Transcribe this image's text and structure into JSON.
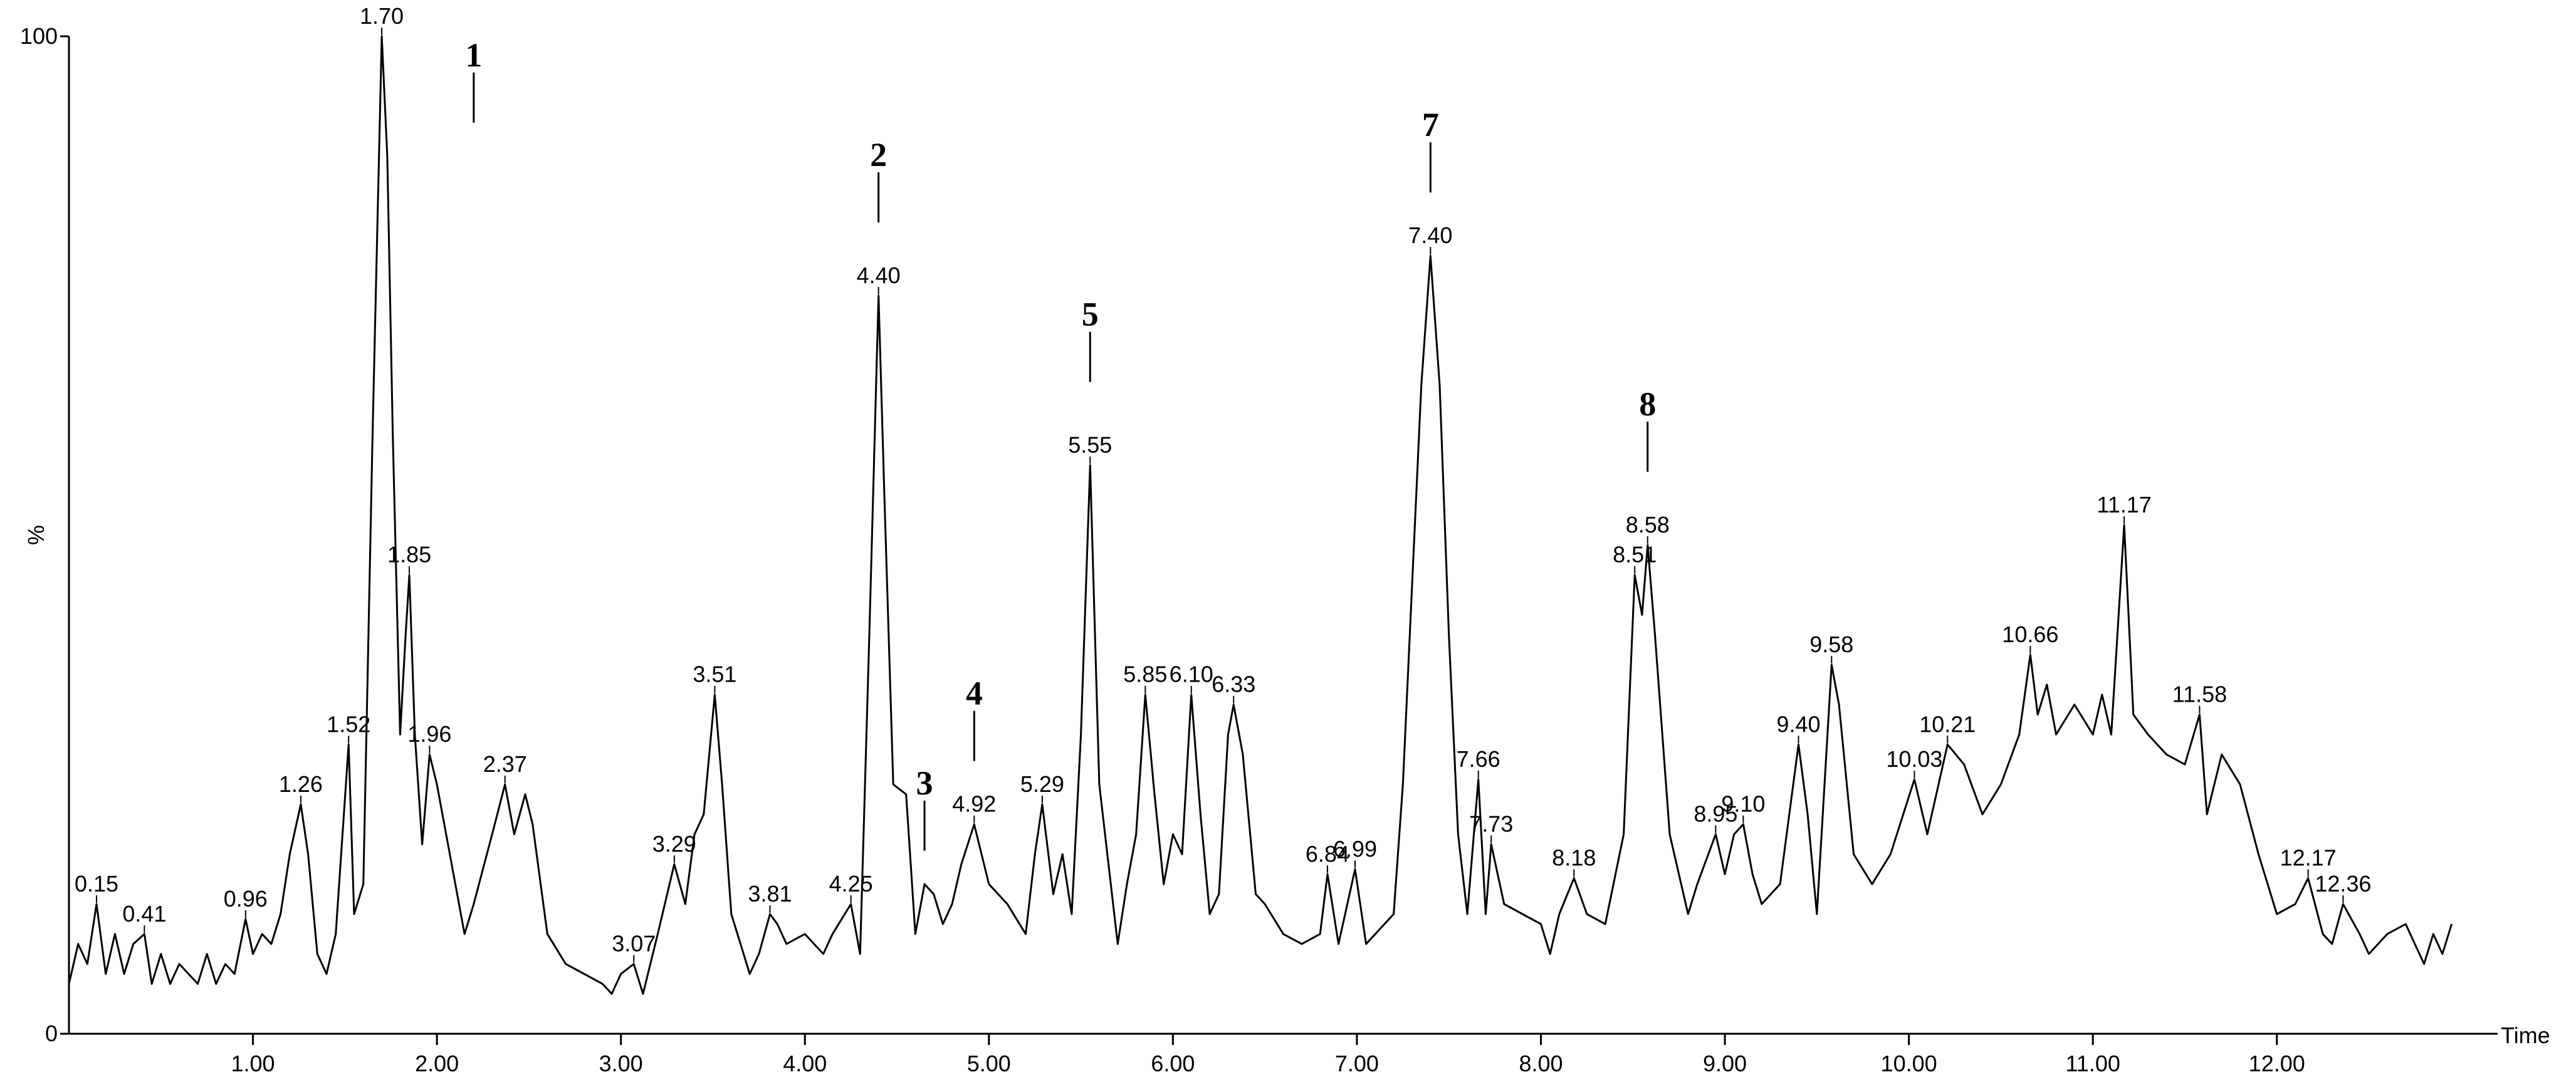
{
  "chart_data": {
    "type": "line",
    "color": "#000000",
    "xlabel": "Time",
    "ylabel": "%",
    "xlim": [
      0,
      13.2
    ],
    "ylim": [
      0,
      100
    ],
    "yticks": [
      0,
      100
    ],
    "xticks": [
      {
        "value": 1,
        "label": "1.00"
      },
      {
        "value": 2,
        "label": "2.00"
      },
      {
        "value": 3,
        "label": "3.00"
      },
      {
        "value": 4,
        "label": "4.00"
      },
      {
        "value": 5,
        "label": "5.00"
      },
      {
        "value": 6,
        "label": "6.00"
      },
      {
        "value": 7,
        "label": "7.00"
      },
      {
        "value": 8,
        "label": "8.00"
      },
      {
        "value": 9,
        "label": "9.00"
      },
      {
        "value": 10,
        "label": "10.00"
      },
      {
        "value": 11,
        "label": "11.00"
      },
      {
        "value": 12,
        "label": "12.00"
      }
    ],
    "x": [
      0.0,
      0.05,
      0.1,
      0.15,
      0.2,
      0.25,
      0.3,
      0.35,
      0.41,
      0.45,
      0.5,
      0.55,
      0.6,
      0.7,
      0.75,
      0.8,
      0.85,
      0.9,
      0.96,
      1.0,
      1.05,
      1.1,
      1.15,
      1.2,
      1.26,
      1.3,
      1.35,
      1.4,
      1.45,
      1.52,
      1.55,
      1.6,
      1.65,
      1.7,
      1.73,
      1.76,
      1.8,
      1.83,
      1.85,
      1.88,
      1.92,
      1.96,
      2.0,
      2.05,
      2.1,
      2.15,
      2.2,
      2.3,
      2.37,
      2.42,
      2.48,
      2.52,
      2.6,
      2.7,
      2.8,
      2.9,
      2.95,
      3.0,
      3.07,
      3.12,
      3.2,
      3.29,
      3.35,
      3.4,
      3.45,
      3.51,
      3.55,
      3.6,
      3.65,
      3.7,
      3.75,
      3.81,
      3.85,
      3.9,
      4.0,
      4.1,
      4.15,
      4.25,
      4.3,
      4.35,
      4.4,
      4.43,
      4.48,
      4.55,
      4.6,
      4.65,
      4.7,
      4.75,
      4.8,
      4.85,
      4.92,
      5.0,
      5.1,
      5.2,
      5.25,
      5.29,
      5.35,
      5.4,
      5.45,
      5.5,
      5.55,
      5.6,
      5.65,
      5.7,
      5.75,
      5.8,
      5.85,
      5.9,
      5.95,
      6.0,
      6.05,
      6.1,
      6.15,
      6.2,
      6.25,
      6.3,
      6.33,
      6.38,
      6.45,
      6.5,
      6.6,
      6.7,
      6.8,
      6.84,
      6.9,
      6.99,
      7.05,
      7.1,
      7.2,
      7.25,
      7.3,
      7.35,
      7.4,
      7.45,
      7.5,
      7.55,
      7.6,
      7.66,
      7.7,
      7.73,
      7.8,
      7.9,
      8.0,
      8.05,
      8.1,
      8.18,
      8.25,
      8.35,
      8.45,
      8.51,
      8.55,
      8.58,
      8.62,
      8.7,
      8.8,
      8.85,
      8.95,
      9.0,
      9.05,
      9.1,
      9.15,
      9.2,
      9.3,
      9.4,
      9.45,
      9.5,
      9.58,
      9.62,
      9.7,
      9.8,
      9.9,
      10.03,
      10.1,
      10.21,
      10.3,
      10.4,
      10.5,
      10.6,
      10.66,
      10.7,
      10.75,
      10.8,
      10.9,
      11.0,
      11.05,
      11.1,
      11.17,
      11.22,
      11.3,
      11.4,
      11.5,
      11.58,
      11.62,
      11.7,
      11.8,
      11.9,
      12.0,
      12.1,
      12.17,
      12.25,
      12.3,
      12.36,
      12.45,
      12.5,
      12.6,
      12.7,
      12.8,
      12.85,
      12.9,
      12.95
    ],
    "values": [
      5,
      9,
      7,
      13,
      6,
      10,
      6,
      9,
      10,
      5,
      8,
      5,
      7,
      5,
      8,
      5,
      7,
      6,
      11.5,
      8,
      10,
      9,
      12,
      18,
      23,
      18,
      8,
      6,
      10,
      29,
      12,
      15,
      60,
      100,
      88,
      60,
      30,
      40,
      46,
      30,
      19,
      28,
      25,
      20,
      15,
      10,
      13,
      20,
      25,
      20,
      24,
      21,
      10,
      7,
      6,
      5,
      4,
      6,
      7,
      4,
      10,
      17,
      13,
      20,
      22,
      34,
      25,
      12,
      9,
      6,
      8,
      12,
      11,
      9,
      10,
      8,
      10,
      13,
      8,
      40,
      74,
      55,
      25,
      24,
      10,
      15,
      14,
      11,
      13,
      17,
      21,
      15,
      13,
      10,
      18,
      23,
      14,
      18,
      12,
      30,
      57,
      25,
      17,
      9,
      15,
      20,
      34,
      24,
      15,
      20,
      18,
      34,
      22,
      12,
      14,
      30,
      33,
      28,
      14,
      13,
      10,
      9,
      10,
      16,
      9,
      16.5,
      9,
      10,
      12,
      25,
      45,
      65,
      78,
      65,
      40,
      20,
      12,
      25.5,
      12,
      19,
      13,
      12,
      11,
      8,
      12,
      15.6,
      12,
      11,
      20,
      46,
      42,
      49,
      40,
      20,
      12,
      15,
      20,
      16,
      20,
      21,
      16,
      13,
      15,
      29,
      22,
      12,
      37,
      33,
      18,
      15,
      18,
      25.5,
      20,
      29,
      27,
      22,
      25,
      30,
      38,
      32,
      35,
      30,
      33,
      30,
      34,
      30,
      51,
      32,
      30,
      28,
      27,
      32,
      22,
      28,
      25,
      18,
      12,
      13,
      15.6,
      10,
      9,
      13,
      10,
      8,
      10,
      11,
      7,
      10,
      8,
      11
    ],
    "peaks": [
      {
        "x": 0.15,
        "y": 13,
        "label": "0.15"
      },
      {
        "x": 0.41,
        "y": 10,
        "label": "0.41"
      },
      {
        "x": 0.96,
        "y": 11.5,
        "label": "0.96"
      },
      {
        "x": 1.26,
        "y": 23,
        "label": "1.26"
      },
      {
        "x": 1.52,
        "y": 29,
        "label": "1.52"
      },
      {
        "x": 1.7,
        "y": 100,
        "label": "1.70"
      },
      {
        "x": 1.85,
        "y": 46,
        "label": "1.85"
      },
      {
        "x": 1.96,
        "y": 28,
        "label": "1.96"
      },
      {
        "x": 2.37,
        "y": 25,
        "label": "2.37"
      },
      {
        "x": 3.07,
        "y": 7,
        "label": "3.07"
      },
      {
        "x": 3.29,
        "y": 17,
        "label": "3.29"
      },
      {
        "x": 3.51,
        "y": 34,
        "label": "3.51"
      },
      {
        "x": 3.81,
        "y": 12,
        "label": "3.81"
      },
      {
        "x": 4.25,
        "y": 13,
        "label": "4.25"
      },
      {
        "x": 4.4,
        "y": 74,
        "label": "4.40"
      },
      {
        "x": 4.92,
        "y": 21,
        "label": "4.92"
      },
      {
        "x": 5.29,
        "y": 23,
        "label": "5.29"
      },
      {
        "x": 5.55,
        "y": 57,
        "label": "5.55"
      },
      {
        "x": 5.85,
        "y": 34,
        "label": "5.85"
      },
      {
        "x": 6.1,
        "y": 34,
        "label": "6.10"
      },
      {
        "x": 6.33,
        "y": 33,
        "label": "6.33"
      },
      {
        "x": 6.84,
        "y": 16,
        "label": "6.84"
      },
      {
        "x": 6.99,
        "y": 16.5,
        "label": "6.99"
      },
      {
        "x": 7.4,
        "y": 78,
        "label": "7.40"
      },
      {
        "x": 7.66,
        "y": 25.5,
        "label": "7.66"
      },
      {
        "x": 7.73,
        "y": 19,
        "label": "7.73"
      },
      {
        "x": 8.18,
        "y": 15.6,
        "label": "8.18"
      },
      {
        "x": 8.51,
        "y": 46,
        "label": "8.51"
      },
      {
        "x": 8.58,
        "y": 49,
        "label": "8.58"
      },
      {
        "x": 8.95,
        "y": 20,
        "label": "8.95"
      },
      {
        "x": 9.1,
        "y": 21,
        "label": "9.10"
      },
      {
        "x": 9.4,
        "y": 29,
        "label": "9.40"
      },
      {
        "x": 9.58,
        "y": 37,
        "label": "9.58"
      },
      {
        "x": 10.03,
        "y": 25.5,
        "label": "10.03"
      },
      {
        "x": 10.21,
        "y": 29,
        "label": "10.21"
      },
      {
        "x": 10.66,
        "y": 38,
        "label": "10.66"
      },
      {
        "x": 11.17,
        "y": 51,
        "label": "11.17"
      },
      {
        "x": 11.58,
        "y": 32,
        "label": "11.58"
      },
      {
        "x": 12.17,
        "y": 15.6,
        "label": "12.17"
      },
      {
        "x": 12.36,
        "y": 13,
        "label": "12.36"
      }
    ],
    "peak_numbers": [
      {
        "text": "1",
        "x": 2.2,
        "y": 97
      },
      {
        "text": "2",
        "x": 4.4,
        "y": 87
      },
      {
        "text": "3",
        "x": 4.65,
        "y": 24
      },
      {
        "text": "4",
        "x": 4.92,
        "y": 33
      },
      {
        "text": "5",
        "x": 5.55,
        "y": 71
      },
      {
        "text": "7",
        "x": 7.4,
        "y": 90
      },
      {
        "text": "8",
        "x": 8.58,
        "y": 62
      }
    ]
  }
}
